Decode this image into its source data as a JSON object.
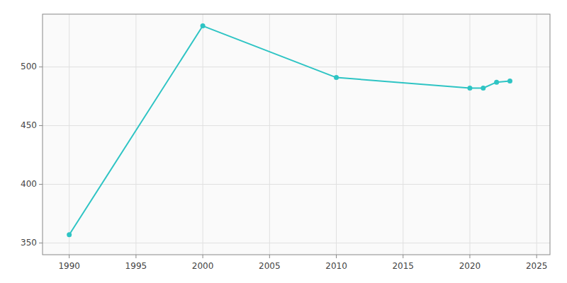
{
  "chart_data": {
    "type": "line",
    "x": [
      1990,
      2000,
      2010,
      2020,
      2021,
      2022,
      2023
    ],
    "values": [
      357,
      535,
      491,
      482,
      482,
      487,
      488
    ],
    "color": "#2ec4c4",
    "marker": "circle",
    "xlim": [
      1988,
      2026
    ],
    "ylim": [
      340,
      545
    ],
    "xticks": [
      1990,
      1995,
      2000,
      2005,
      2010,
      2015,
      2020,
      2025
    ],
    "yticks": [
      350,
      400,
      450,
      500
    ],
    "grid": true
  }
}
